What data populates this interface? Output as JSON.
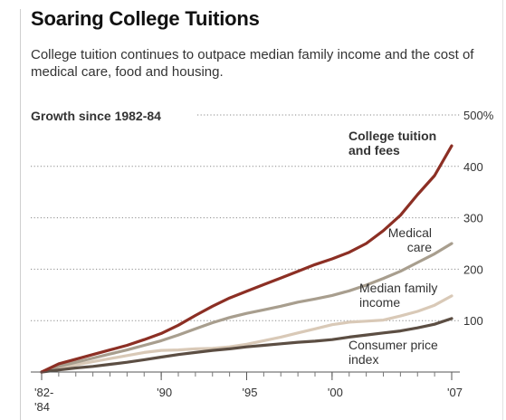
{
  "header": {
    "title": "Soaring College Tuitions",
    "subtitle": "College tuition continues to outpace median family income and the cost of medical care, food and housing."
  },
  "chart_data": {
    "type": "line",
    "title": "Growth since 1982-84",
    "x_ticks": [
      {
        "year": 1983,
        "label": [
          "'82-",
          "'84"
        ]
      },
      {
        "year": 1990,
        "label": [
          "'90"
        ]
      },
      {
        "year": 1995,
        "label": [
          "'95"
        ]
      },
      {
        "year": 2000,
        "label": [
          "'00"
        ]
      },
      {
        "year": 2007,
        "label": [
          "'07"
        ]
      }
    ],
    "ylim": [
      0,
      500
    ],
    "y_ticks": [
      100,
      200,
      300,
      400,
      500
    ],
    "y_tick_labels": [
      "100",
      "200",
      "300",
      "400",
      "500%"
    ],
    "grid": "dotted horizontal",
    "x": [
      1983,
      1984,
      1985,
      1986,
      1987,
      1988,
      1989,
      1990,
      1991,
      1992,
      1993,
      1994,
      1995,
      1996,
      1997,
      1998,
      1999,
      2000,
      2001,
      2002,
      2003,
      2004,
      2005,
      2006,
      2007
    ],
    "series": [
      {
        "name": "College tuition and fees",
        "label_lines": [
          "College tuition",
          "and fees"
        ],
        "bold": true,
        "color": "#8c2f24",
        "values": [
          0,
          16,
          25,
          34,
          43,
          52,
          63,
          75,
          91,
          110,
          128,
          144,
          157,
          170,
          183,
          196,
          209,
          220,
          233,
          250,
          275,
          305,
          345,
          382,
          440
        ]
      },
      {
        "name": "Medical care",
        "label_lines": [
          "Medical",
          "care"
        ],
        "color": "#a89e8e",
        "values": [
          0,
          11,
          19,
          27,
          35,
          43,
          52,
          61,
          72,
          84,
          96,
          106,
          114,
          121,
          128,
          136,
          142,
          149,
          158,
          169,
          182,
          196,
          213,
          230,
          250
        ]
      },
      {
        "name": "Median family income",
        "label_lines": [
          "Median family",
          "income"
        ],
        "color": "#d9c9b7",
        "values": [
          0,
          8,
          14,
          20,
          26,
          32,
          38,
          42,
          43,
          45,
          46,
          49,
          54,
          61,
          68,
          76,
          84,
          92,
          97,
          99,
          101,
          109,
          118,
          130,
          148
        ]
      },
      {
        "name": "Consumer price index",
        "label_lines": [
          "Consumer price",
          "index"
        ],
        "color": "#5c4e43",
        "values": [
          0,
          4,
          8,
          11,
          15,
          19,
          24,
          29,
          34,
          38,
          42,
          45,
          49,
          52,
          55,
          58,
          60,
          63,
          68,
          72,
          76,
          80,
          86,
          93,
          104
        ]
      }
    ]
  }
}
